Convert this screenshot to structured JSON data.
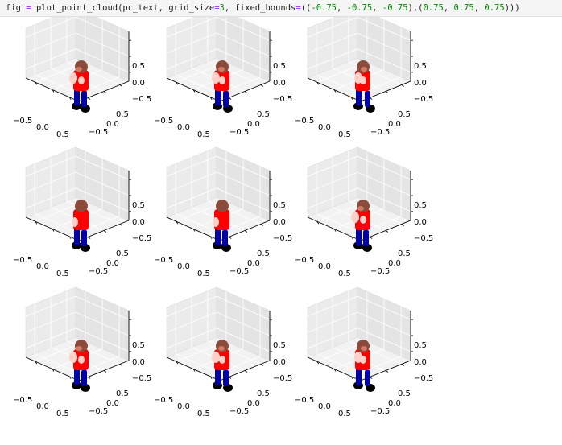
{
  "cell": {
    "code": {
      "var": "fig",
      "op": "=",
      "call": "plot_point_cloud(pc_text, grid_size",
      "eq": "=",
      "grid": "3",
      "mid": ", fixed_bounds",
      "eq2": "=",
      "b1": "((",
      "n1": "-0.75",
      "c1": ", ",
      "n2": "-0.75",
      "c2": ", ",
      "n3": "-0.75",
      "b2": "),(",
      "n4": "0.75",
      "c4": ", ",
      "n5": "0.75",
      "c5": ", ",
      "n6": "0.75",
      "b3": ")))"
    }
  },
  "colors": {
    "hair": "#8b4a3a",
    "skin": "#ffd0c8",
    "shirt": "#ff0000",
    "pants": "#0000aa",
    "shoes": "#000000",
    "pane": "#f2f2f2",
    "axis": "#000000"
  },
  "chart_data": [
    {
      "type": "scatter3d",
      "grid_position": [
        1,
        1
      ],
      "xlim": [
        -0.75,
        0.75
      ],
      "ylim": [
        -0.75,
        0.75
      ],
      "zlim": [
        -0.75,
        0.75
      ],
      "x_ticks": [
        "−0.5",
        "0.0",
        "0.5"
      ],
      "y_ticks": [
        "0.5",
        "0.0",
        "−0.5"
      ],
      "z_ticks": [
        "0.5",
        "0.0",
        "−0.5"
      ],
      "grid": true,
      "figure_pose": "front"
    },
    {
      "type": "scatter3d",
      "grid_position": [
        1,
        2
      ],
      "xlim": [
        -0.75,
        0.75
      ],
      "ylim": [
        -0.75,
        0.75
      ],
      "zlim": [
        -0.75,
        0.75
      ],
      "x_ticks": [
        "−0.5",
        "0.0",
        "0.5"
      ],
      "y_ticks": [
        "0.5",
        "0.0",
        "−0.5"
      ],
      "z_ticks": [
        "0.5",
        "0.0",
        "−0.5"
      ],
      "grid": true,
      "figure_pose": "three-quarter"
    },
    {
      "type": "scatter3d",
      "grid_position": [
        1,
        3
      ],
      "xlim": [
        -0.75,
        0.75
      ],
      "ylim": [
        -0.75,
        0.75
      ],
      "zlim": [
        -0.75,
        0.75
      ],
      "x_ticks": [
        "−0.5",
        "0.0",
        "0.5"
      ],
      "y_ticks": [
        "0.5",
        "0.0",
        "−0.5"
      ],
      "z_ticks": [
        "0.5",
        "0.0",
        "−0.5"
      ],
      "grid": true,
      "figure_pose": "side"
    },
    {
      "type": "scatter3d",
      "grid_position": [
        2,
        1
      ],
      "xlim": [
        -0.75,
        0.75
      ],
      "ylim": [
        -0.75,
        0.75
      ],
      "zlim": [
        -0.75,
        0.75
      ],
      "x_ticks": [
        "−0.5",
        "0.0",
        "0.5"
      ],
      "y_ticks": [
        "0.5",
        "0.0",
        "−0.5"
      ],
      "z_ticks": [
        "0.5",
        "0.0",
        "−0.5"
      ],
      "grid": true,
      "figure_pose": "back"
    },
    {
      "type": "scatter3d",
      "grid_position": [
        2,
        2
      ],
      "xlim": [
        -0.75,
        0.75
      ],
      "ylim": [
        -0.75,
        0.75
      ],
      "zlim": [
        -0.75,
        0.75
      ],
      "x_ticks": [
        "−0.5",
        "0.0",
        "0.5"
      ],
      "y_ticks": [
        "0.5",
        "0.0",
        "−0.5"
      ],
      "z_ticks": [
        "0.5",
        "0.0",
        "−0.5"
      ],
      "grid": true,
      "figure_pose": "back"
    },
    {
      "type": "scatter3d",
      "grid_position": [
        2,
        3
      ],
      "xlim": [
        -0.75,
        0.75
      ],
      "ylim": [
        -0.75,
        0.75
      ],
      "zlim": [
        -0.75,
        0.75
      ],
      "x_ticks": [
        "−0.5",
        "0.0",
        "0.5"
      ],
      "y_ticks": [
        "0.5",
        "0.0",
        "−0.5"
      ],
      "z_ticks": [
        "0.5",
        "0.0",
        "−0.5"
      ],
      "grid": true,
      "figure_pose": "front"
    },
    {
      "type": "scatter3d",
      "grid_position": [
        3,
        1
      ],
      "xlim": [
        -0.75,
        0.75
      ],
      "ylim": [
        -0.75,
        0.75
      ],
      "zlim": [
        -0.75,
        0.75
      ],
      "x_ticks": [
        "−0.5",
        "0.0",
        "0.5"
      ],
      "y_ticks": [
        "0.5",
        "0.0",
        "−0.5"
      ],
      "z_ticks": [
        "0.5",
        "0.0",
        "−0.5"
      ],
      "grid": true,
      "figure_pose": "front"
    },
    {
      "type": "scatter3d",
      "grid_position": [
        3,
        2
      ],
      "xlim": [
        -0.75,
        0.75
      ],
      "ylim": [
        -0.75,
        0.75
      ],
      "zlim": [
        -0.75,
        0.75
      ],
      "x_ticks": [
        "−0.5",
        "0.0",
        "0.5"
      ],
      "y_ticks": [
        "0.5",
        "0.0",
        "−0.5"
      ],
      "z_ticks": [
        "0.5",
        "0.0",
        "−0.5"
      ],
      "grid": true,
      "figure_pose": "three-quarter"
    },
    {
      "type": "scatter3d",
      "grid_position": [
        3,
        3
      ],
      "xlim": [
        -0.75,
        0.75
      ],
      "ylim": [
        -0.75,
        0.75
      ],
      "zlim": [
        -0.75,
        0.75
      ],
      "x_ticks": [
        "−0.5",
        "0.0",
        "0.5"
      ],
      "y_ticks": [
        "0.5",
        "0.0",
        "−0.5"
      ],
      "z_ticks": [
        "0.5",
        "0.0",
        "−0.5"
      ],
      "grid": true,
      "figure_pose": "side"
    }
  ]
}
